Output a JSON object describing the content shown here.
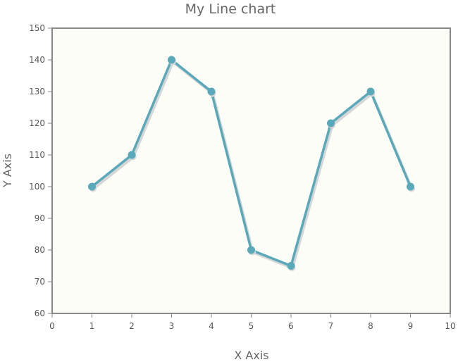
{
  "chart_data": {
    "type": "line",
    "title": "My Line chart",
    "xlabel": "X Axis",
    "ylabel": "Y Axis",
    "xlim": [
      0,
      10
    ],
    "ylim": [
      60,
      150
    ],
    "x_ticks": [
      "0",
      "1",
      "2",
      "3",
      "4",
      "5",
      "6",
      "7",
      "8",
      "9",
      "10"
    ],
    "y_ticks": [
      "60",
      "70",
      "80",
      "90",
      "100",
      "110",
      "120",
      "130",
      "140",
      "150"
    ],
    "grid": false,
    "series": [
      {
        "x": [
          1,
          2,
          3,
          4,
          5,
          6,
          7,
          8,
          9
        ],
        "values": [
          100,
          110,
          140,
          130,
          80,
          75,
          120,
          130,
          100
        ]
      }
    ]
  },
  "colors": {
    "line": "#5aa9bb",
    "plot_background": "#fdfdf7",
    "plot_border": "#888888",
    "shadow": "#d6d6d6"
  }
}
